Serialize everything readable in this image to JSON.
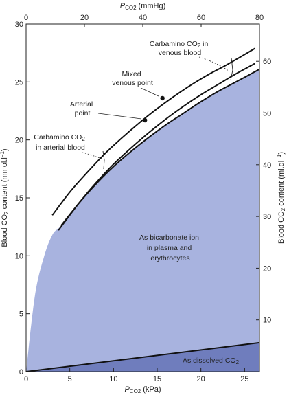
{
  "chart_data": {
    "type": "area",
    "axes": {
      "bottom": {
        "label": "P CO2 (kPa)",
        "label_main": "P",
        "label_sub": "CO2",
        "label_unit": "(kPa)",
        "range": [
          0,
          26.7
        ],
        "ticks": [
          0,
          5,
          10,
          15,
          20,
          25
        ]
      },
      "top": {
        "label": "P CO2 (mmHg)",
        "label_main": "P",
        "label_sub": "CO2",
        "label_unit": "(mmHg)",
        "range": [
          0,
          80
        ],
        "ticks": [
          0,
          20,
          40,
          60,
          80
        ]
      },
      "left": {
        "label": "Blood CO2 content (mmol.l−1)",
        "label_pre": "Blood CO",
        "label_sub": "2",
        "label_post": " content (mmol.l",
        "label_sup": "−1",
        "label_end": ")",
        "range": [
          0,
          30
        ],
        "ticks": [
          0,
          5,
          10,
          15,
          20,
          25,
          30
        ]
      },
      "right": {
        "label": "Blood CO2 content (ml.dl−1)",
        "label_pre": "Blood CO",
        "label_sub": "2",
        "label_post": " content (ml.dl",
        "label_sup": "−1",
        "label_end": ")",
        "range": [
          0,
          67.2
        ],
        "ticks": [
          10,
          20,
          30,
          40,
          50,
          60
        ]
      }
    },
    "series": [
      {
        "name": "Total CO2 (bicarbonate + dissolved)",
        "x": [
          0,
          1,
          2,
          3,
          4,
          6,
          8,
          10,
          12,
          14,
          16,
          18,
          20,
          22,
          24,
          26.7
        ],
        "y": [
          0,
          6.5,
          9.8,
          11.8,
          12.6,
          14.5,
          16.2,
          17.7,
          19.0,
          20.2,
          21.3,
          22.3,
          23.3,
          24.2,
          25.0,
          26.1
        ]
      },
      {
        "name": "Dissolved CO2",
        "x": [
          0,
          26.7
        ],
        "y": [
          0,
          2.5
        ]
      },
      {
        "name": "Arterial blood curve",
        "x": [
          3.7,
          6,
          8,
          10,
          12,
          14,
          16,
          18,
          20,
          22,
          24,
          26.2
        ],
        "y": [
          12.2,
          14.5,
          16.3,
          17.9,
          19.3,
          20.6,
          21.8,
          22.9,
          23.9,
          24.8,
          25.7,
          26.6
        ]
      },
      {
        "name": "Mixed venous blood curve",
        "x": [
          3.0,
          5,
          7,
          9,
          11,
          13,
          15,
          17,
          19,
          21,
          23,
          26.2
        ],
        "y": [
          13.5,
          15.5,
          17.2,
          18.8,
          20.2,
          21.5,
          22.7,
          23.8,
          24.8,
          25.7,
          26.5,
          27.9
        ]
      }
    ],
    "points": [
      {
        "name": "Arterial point",
        "x": 13.6,
        "y": 21.7
      },
      {
        "name": "Mixed venous point",
        "x": 15.6,
        "y": 23.6
      }
    ],
    "annotations": {
      "carbamino_venous": {
        "main": "Carbamino CO",
        "sub": "2",
        "post": " in",
        "line2": "venous blood"
      },
      "mixed_venous": {
        "line1": "Mixed",
        "line2": "venous point"
      },
      "arterial": {
        "line1": "Arterial",
        "line2": "point"
      },
      "carbamino_arterial": {
        "main": "Carbamino CO",
        "sub": "2",
        "line2": "in arterial blood"
      },
      "bicarbonate": {
        "line1": "As bicarbonate ion",
        "line2": "in plasma and",
        "line3": "erythrocytes"
      },
      "dissolved": {
        "main": "As dissolved CO",
        "sub": "2"
      }
    },
    "colors": {
      "total_area": "#a8b3df",
      "dissolved_area": "#6f7dbd",
      "curve": "#111111",
      "plot_background": "#ffffff"
    },
    "grid": false
  }
}
